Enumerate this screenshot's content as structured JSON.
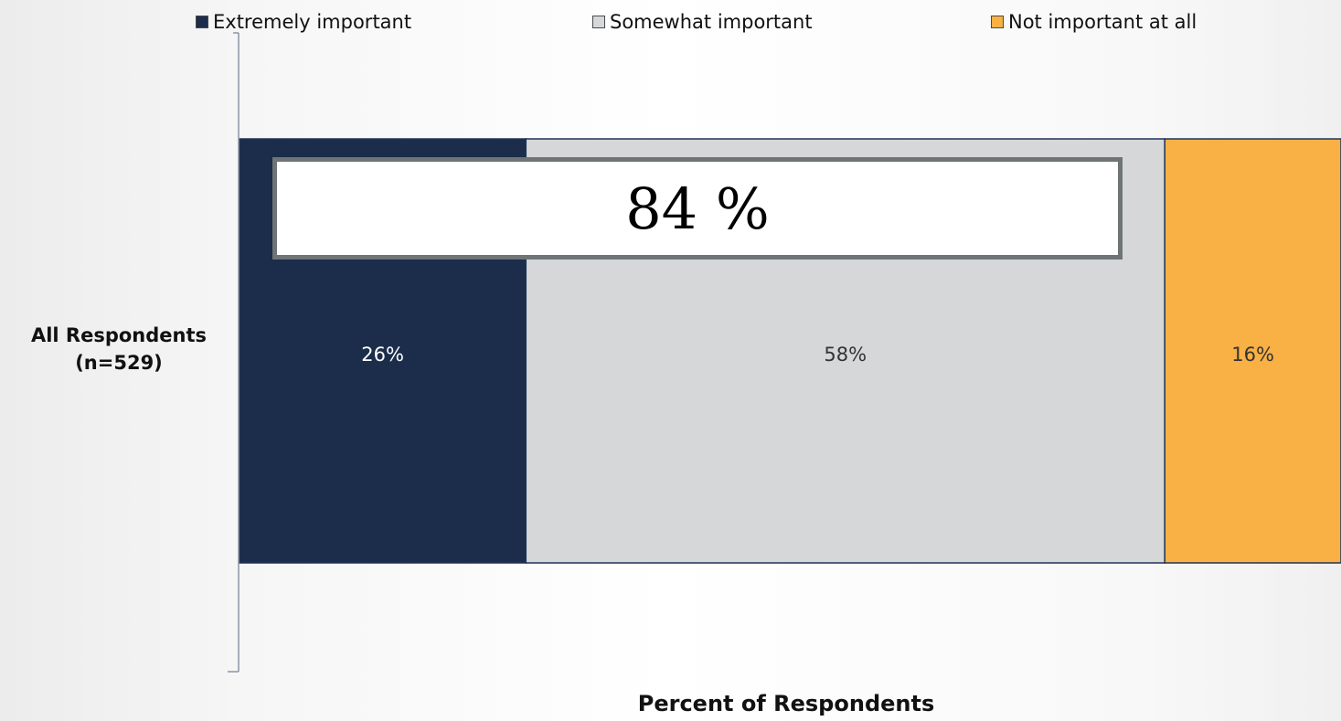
{
  "chart_data": {
    "type": "bar",
    "orientation": "horizontal",
    "stacked": true,
    "categories": [
      "All Respondents\n(n=529)"
    ],
    "series": [
      {
        "name": "Extremely important",
        "values": [
          26
        ],
        "color": "#1b2d4b",
        "label_color": "#ffffff"
      },
      {
        "name": "Somewhat important",
        "values": [
          58
        ],
        "color": "#d6d7d9",
        "label_color": "#333333"
      },
      {
        "name": "Not important at all",
        "values": [
          16
        ],
        "color": "#f9b044",
        "label_color": "#333333"
      }
    ],
    "data_labels": [
      "26%",
      "58%",
      "16%"
    ],
    "xlabel": "Percent of Respondents",
    "xlim": [
      0,
      100
    ],
    "legend_position": "top",
    "grid": false,
    "annotation": "84 %"
  }
}
